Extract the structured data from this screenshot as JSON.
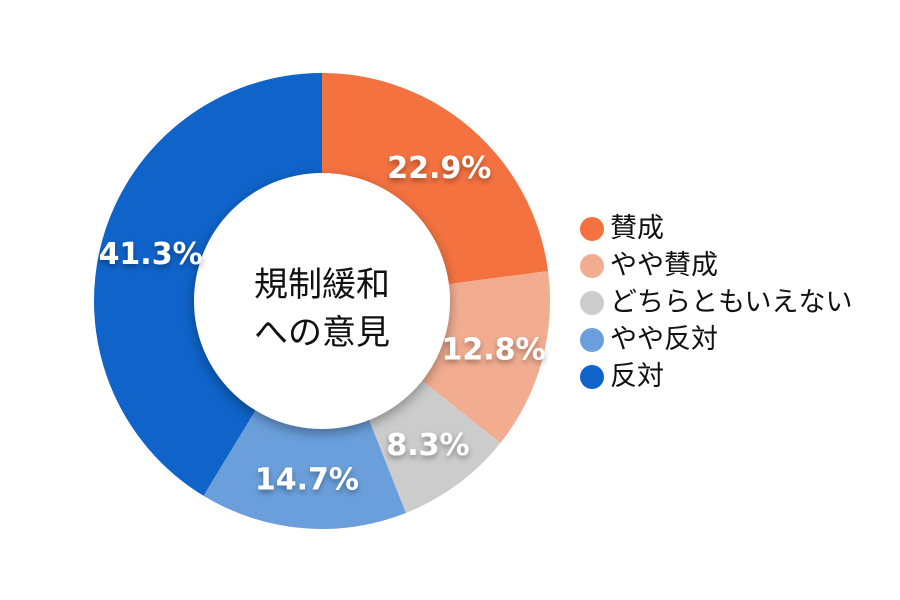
{
  "chart_data": {
    "type": "pie",
    "variant": "donut",
    "title": "規制緩和への意見",
    "center_label": [
      "規制緩和",
      "への意見"
    ],
    "start_angle_deg": 0,
    "direction": "clockwise",
    "categories": [
      "賛成",
      "やや賛成",
      "どちらともいえない",
      "やや反対",
      "反対"
    ],
    "values": [
      22.9,
      12.8,
      8.3,
      14.7,
      41.3
    ],
    "labels": [
      "22.9%",
      "12.8%",
      "8.3%",
      "14.7%",
      "41.3%"
    ],
    "colors": [
      "#f47240",
      "#f2ad91",
      "#cccccc",
      "#6a9fdc",
      "#0f63c9"
    ],
    "legend_position": "right",
    "unit": "%"
  },
  "legend": {
    "items": [
      {
        "label": "賛成",
        "color": "#f47240"
      },
      {
        "label": "やや賛成",
        "color": "#f2ad91"
      },
      {
        "label": "どちらともいえない",
        "color": "#cccccc"
      },
      {
        "label": "やや反対",
        "color": "#6a9fdc"
      },
      {
        "label": "反対",
        "color": "#0f63c9"
      }
    ]
  }
}
